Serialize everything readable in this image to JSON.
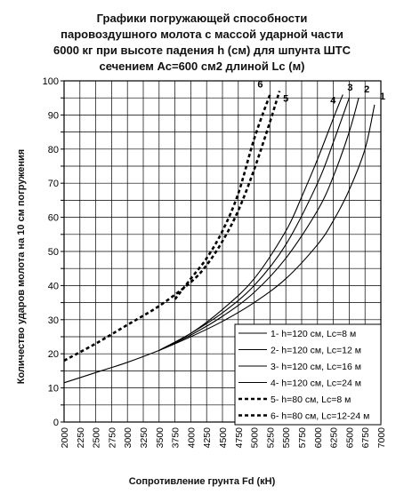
{
  "chart_data": {
    "type": "line",
    "title": [
      "Графики погружающей способности",
      "паровоздушного молота с массой ударной части",
      "6000 кг при высоте падения h (см) для шпунта ШТС",
      "сечением Ас=600 см2  длиной Lc (м)"
    ],
    "xlabel": "Сопротивление грунта Fd (кН)",
    "ylabel": "Количество ударов молота на 10 см погружения",
    "xlim": [
      2000,
      7000
    ],
    "ylim": [
      0,
      100
    ],
    "xticks": [
      2000,
      2250,
      2500,
      2750,
      3000,
      3250,
      3500,
      3750,
      4000,
      4250,
      4500,
      4750,
      5000,
      5250,
      5500,
      5750,
      6000,
      6250,
      6500,
      6750,
      7000
    ],
    "xtick_labels": [
      "2000",
      "2250",
      "2500",
      "2750",
      "3000",
      "3250",
      "3500",
      "3750",
      "4000",
      "4250",
      "4500",
      "4750",
      "5000",
      "5250",
      "5500",
      "5750",
      "6000",
      "6250",
      "6500",
      "6750",
      "7000"
    ],
    "yticks": [
      0,
      5,
      10,
      15,
      20,
      25,
      30,
      35,
      40,
      45,
      50,
      55,
      60,
      65,
      70,
      75,
      80,
      85,
      90,
      95,
      100
    ],
    "ytick_labels": [
      "0",
      "",
      "10",
      "",
      "20",
      "",
      "30",
      "",
      "40",
      "",
      "50",
      "",
      "60",
      "",
      "70",
      "",
      "80",
      "",
      "90",
      "",
      "100"
    ],
    "grid": true,
    "legend_position": "bottom-right",
    "series": [
      {
        "name": "1- h=120 см, Lc=8 м",
        "curve_label": "1",
        "dash": "solid",
        "x": [
          2000,
          2500,
          3000,
          3500,
          4000,
          4500,
          5000,
          5500,
          6000,
          6250,
          6500,
          6750,
          6900
        ],
        "y": [
          11.5,
          14.5,
          17.5,
          21,
          25,
          29.5,
          35,
          42,
          52,
          59,
          68,
          80,
          93
        ]
      },
      {
        "name": "2- h=120 см, Lc=12 м",
        "curve_label": "2",
        "dash": "solid",
        "x": [
          3500,
          4000,
          4500,
          5000,
          5500,
          6000,
          6250,
          6500,
          6650
        ],
        "y": [
          21,
          25.5,
          31,
          38,
          48,
          62,
          72,
          85,
          95
        ]
      },
      {
        "name": "3- h=120 см, Lc=16 м",
        "curve_label": "3",
        "dash": "solid",
        "x": [
          3500,
          4000,
          4500,
          5000,
          5500,
          6000,
          6250,
          6500
        ],
        "y": [
          21,
          26,
          32,
          40,
          52,
          70,
          82,
          95
        ]
      },
      {
        "name": "4- h=120 см, Lc=24 м",
        "curve_label": "4",
        "dash": "solid",
        "x": [
          3500,
          4000,
          4500,
          5000,
          5500,
          5750,
          6000,
          6250,
          6400
        ],
        "y": [
          21,
          26,
          33,
          42,
          56,
          66,
          77,
          89,
          96
        ]
      },
      {
        "name": "5- h=80 см, Lc=8 м",
        "curve_label": "5",
        "dash": "dashed",
        "x": [
          2000,
          2500,
          3000,
          3500,
          4000,
          4250,
          4500,
          4750,
          5000,
          5250,
          5400
        ],
        "y": [
          18,
          23,
          28.5,
          34,
          41,
          46,
          53,
          62,
          74,
          88,
          97
        ]
      },
      {
        "name": "6- h=80 см, Lc=12-24 м",
        "curve_label": "6",
        "dash": "dashed",
        "x": [
          3750,
          4000,
          4250,
          4500,
          4750,
          5000,
          5250
        ],
        "y": [
          36,
          42,
          48,
          56,
          67,
          83,
          96
        ]
      }
    ]
  }
}
